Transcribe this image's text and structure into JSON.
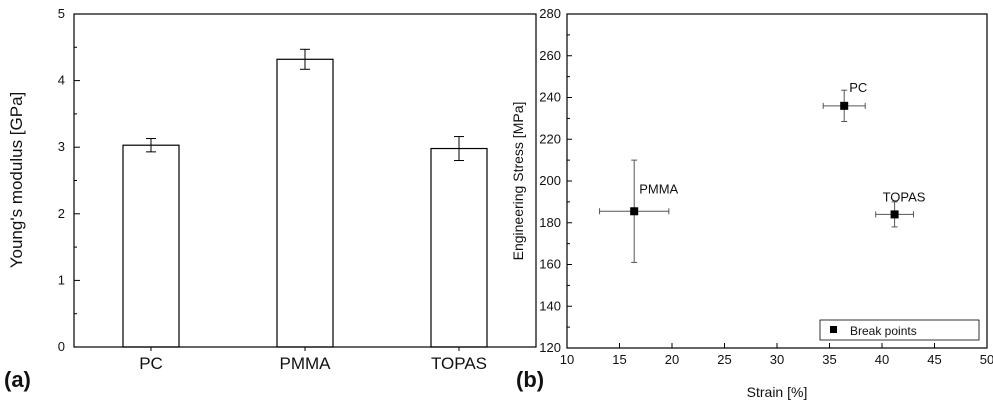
{
  "panels": {
    "a_label": "(a)",
    "b_label": "(b)"
  },
  "chart_data": [
    {
      "type": "bar",
      "title": "",
      "xlabel": "",
      "ylabel": "Young's modulus [GPa]",
      "ylim": [
        0,
        5
      ],
      "yticks": [
        "0",
        "1",
        "2",
        "3",
        "4",
        "5"
      ],
      "categories": [
        "PC",
        "PMMA",
        "TOPAS"
      ],
      "values": [
        3.03,
        4.32,
        2.98
      ],
      "error": [
        0.1,
        0.15,
        0.18
      ],
      "bar_fill": "#ffffff",
      "bar_stroke": "#000000",
      "grid": false
    },
    {
      "type": "scatter",
      "title": "",
      "xlabel": "Strain [%]",
      "ylabel": "Engineering Stress [MPa]",
      "xlim": [
        10,
        50
      ],
      "ylim": [
        120,
        280
      ],
      "xticks": [
        "10",
        "15",
        "20",
        "25",
        "30",
        "35",
        "40",
        "45",
        "50"
      ],
      "yticks": [
        "120",
        "140",
        "160",
        "180",
        "200",
        "220",
        "240",
        "260",
        "280"
      ],
      "legend": {
        "label": "Break points",
        "placement": "bottom-right"
      },
      "marker_color": "#000000",
      "grid": false,
      "points": [
        {
          "label": "PMMA",
          "x": 16.4,
          "y": 185.5,
          "xerr": 3.3,
          "yerr": 24.5
        },
        {
          "label": "PC",
          "x": 36.4,
          "y": 236.0,
          "xerr": 2.0,
          "yerr": 7.5
        },
        {
          "label": "TOPAS",
          "x": 41.2,
          "y": 184.0,
          "xerr": 1.8,
          "yerr": 6.0
        }
      ]
    }
  ]
}
